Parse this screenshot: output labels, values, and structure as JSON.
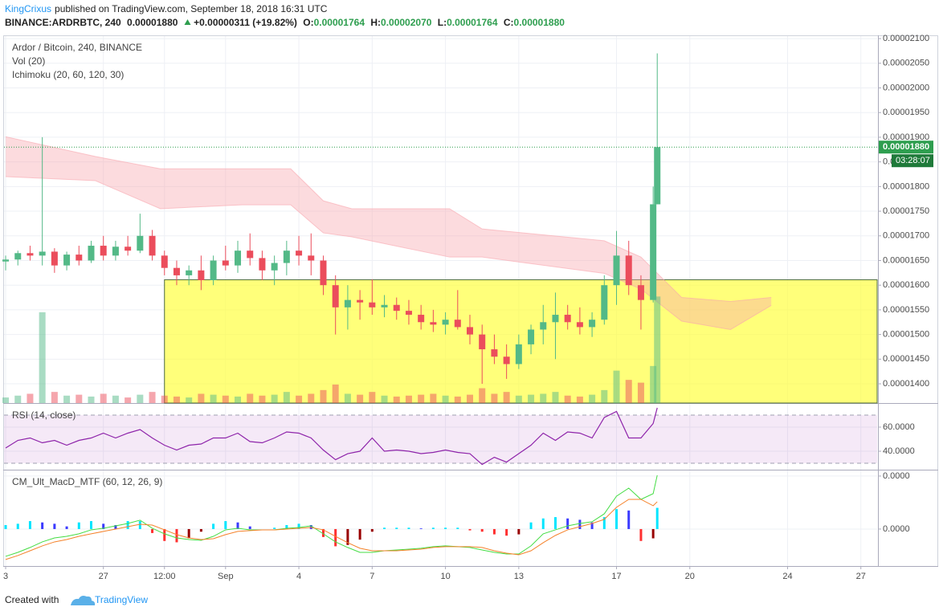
{
  "header": {
    "author": "KingCrixus",
    "published": "published on TradingView.com, September 18, 2018 16:31 UTC",
    "symbol": "BINANCE:ARDRBTC, 240",
    "last": "0.00001880",
    "change": "+0.00000311 (+19.82%)",
    "ohlc": [
      {
        "label": "O:",
        "value": "0.00001764"
      },
      {
        "label": "H:",
        "value": "0.00002070"
      },
      {
        "label": "L:",
        "value": "0.00001764"
      },
      {
        "label": "C:",
        "value": "0.00001880"
      }
    ]
  },
  "footer": {
    "created": "Created with",
    "brand": "TradingView"
  },
  "chart_data": [
    {
      "type": "candlestick",
      "title": "Ardor / Bitcoin, 240, BINANCE",
      "indicators": [
        "Vol (20)",
        "Ichimoku (20, 60, 120, 30)"
      ],
      "up_color": "#53b987",
      "down_color": "#eb4d5c",
      "cloud_color": "#f8a5ad",
      "box_color": "#ffff33",
      "last_color": "#2e9e4f",
      "countdown_color": "#1f7a3a",
      "xlim": [
        -0.4,
        214
      ],
      "ylim": [
        1.361e-05,
        2.105e-05
      ],
      "yticks": [
        {
          "value": 1.4e-05,
          "label": "0.00001400"
        },
        {
          "value": 1.45e-05,
          "label": "0.00001450"
        },
        {
          "value": 1.5e-05,
          "label": "0.00001500"
        },
        {
          "value": 1.55e-05,
          "label": "0.00001550"
        },
        {
          "value": 1.6e-05,
          "label": "0.00001600"
        },
        {
          "value": 1.65e-05,
          "label": "0.00001650"
        },
        {
          "value": 1.7e-05,
          "label": "0.00001700"
        },
        {
          "value": 1.75e-05,
          "label": "0.00001750"
        },
        {
          "value": 1.8e-05,
          "label": "0.00001800"
        },
        {
          "value": 1.85e-05,
          "label": "0.00001850"
        },
        {
          "value": 1.9e-05,
          "label": "0.00001900"
        },
        {
          "value": 1.95e-05,
          "label": "0.00001950"
        },
        {
          "value": 2e-05,
          "label": "0.00002000"
        },
        {
          "value": 2.05e-05,
          "label": "0.00002050"
        },
        {
          "value": 2.1e-05,
          "label": "0.00002100"
        }
      ],
      "x": [
        0,
        3,
        6,
        9,
        12,
        15,
        18,
        21,
        24,
        27,
        30,
        33,
        36,
        39,
        42,
        45,
        48,
        51,
        54,
        57,
        60,
        63,
        66,
        69,
        72,
        75,
        78,
        81,
        84,
        87,
        90,
        93,
        96,
        99,
        102,
        105,
        108,
        111,
        114,
        117,
        120,
        123,
        126,
        129,
        132,
        135,
        138,
        141,
        144,
        147,
        150,
        153,
        156,
        159,
        160
      ],
      "open": [
        1.648e-05,
        1.652e-05,
        1.665e-05,
        1.66e-05,
        1.668e-05,
        1.64e-05,
        1.662e-05,
        1.65e-05,
        1.68e-05,
        1.66e-05,
        1.678e-05,
        1.67e-05,
        1.7e-05,
        1.66e-05,
        1.635e-05,
        1.62e-05,
        1.63e-05,
        1.61e-05,
        1.65e-05,
        1.64e-05,
        1.67e-05,
        1.655e-05,
        1.63e-05,
        1.645e-05,
        1.67e-05,
        1.66e-05,
        1.65e-05,
        1.6e-05,
        1.555e-05,
        1.57e-05,
        1.565e-05,
        1.555e-05,
        1.56e-05,
        1.548e-05,
        1.54e-05,
        1.525e-05,
        1.52e-05,
        1.53e-05,
        1.515e-05,
        1.5e-05,
        1.47e-05,
        1.455e-05,
        1.44e-05,
        1.48e-05,
        1.51e-05,
        1.525e-05,
        1.54e-05,
        1.525e-05,
        1.515e-05,
        1.53e-05,
        1.6e-05,
        1.66e-05,
        1.6e-05,
        1.57e-05,
        1.764e-05
      ],
      "high": [
        1.66e-05,
        1.67e-05,
        1.68e-05,
        1.9e-05,
        1.675e-05,
        1.668e-05,
        1.68e-05,
        1.69e-05,
        1.7e-05,
        1.69e-05,
        1.7e-05,
        1.745e-05,
        1.712e-05,
        1.67e-05,
        1.65e-05,
        1.64e-05,
        1.66e-05,
        1.66e-05,
        1.68e-05,
        1.69e-05,
        1.705e-05,
        1.67e-05,
        1.66e-05,
        1.69e-05,
        1.7e-05,
        1.705e-05,
        1.66e-05,
        1.62e-05,
        1.6e-05,
        1.59e-05,
        1.612e-05,
        1.58e-05,
        1.575e-05,
        1.57e-05,
        1.56e-05,
        1.55e-05,
        1.545e-05,
        1.59e-05,
        1.54e-05,
        1.52e-05,
        1.5e-05,
        1.48e-05,
        1.5e-05,
        1.52e-05,
        1.56e-05,
        1.585e-05,
        1.56e-05,
        1.555e-05,
        1.545e-05,
        1.62e-05,
        1.71e-05,
        1.69e-05,
        1.62e-05,
        1.8e-05,
        2.07e-05
      ],
      "low": [
        1.63e-05,
        1.64e-05,
        1.65e-05,
        1.64e-05,
        1.625e-05,
        1.63e-05,
        1.64e-05,
        1.645e-05,
        1.65e-05,
        1.65e-05,
        1.66e-05,
        1.665e-05,
        1.65e-05,
        1.62e-05,
        1.6e-05,
        1.6e-05,
        1.59e-05,
        1.6e-05,
        1.63e-05,
        1.625e-05,
        1.64e-05,
        1.61e-05,
        1.6e-05,
        1.62e-05,
        1.64e-05,
        1.62e-05,
        1.58e-05,
        1.5e-05,
        1.51e-05,
        1.53e-05,
        1.54e-05,
        1.535e-05,
        1.53e-05,
        1.52e-05,
        1.51e-05,
        1.505e-05,
        1.5e-05,
        1.51e-05,
        1.48e-05,
        1.4e-05,
        1.44e-05,
        1.41e-05,
        1.43e-05,
        1.46e-05,
        1.48e-05,
        1.45e-05,
        1.51e-05,
        1.5e-05,
        1.495e-05,
        1.52e-05,
        1.56e-05,
        1.58e-05,
        1.51e-05,
        1.565e-05,
        1.764e-05
      ],
      "close": [
        1.652e-05,
        1.665e-05,
        1.66e-05,
        1.668e-05,
        1.64e-05,
        1.662e-05,
        1.65e-05,
        1.68e-05,
        1.66e-05,
        1.678e-05,
        1.67e-05,
        1.7e-05,
        1.66e-05,
        1.635e-05,
        1.62e-05,
        1.63e-05,
        1.61e-05,
        1.65e-05,
        1.64e-05,
        1.67e-05,
        1.655e-05,
        1.63e-05,
        1.645e-05,
        1.67e-05,
        1.66e-05,
        1.65e-05,
        1.6e-05,
        1.555e-05,
        1.57e-05,
        1.565e-05,
        1.555e-05,
        1.56e-05,
        1.548e-05,
        1.54e-05,
        1.525e-05,
        1.52e-05,
        1.53e-05,
        1.515e-05,
        1.5e-05,
        1.47e-05,
        1.455e-05,
        1.44e-05,
        1.48e-05,
        1.51e-05,
        1.525e-05,
        1.54e-05,
        1.525e-05,
        1.515e-05,
        1.53e-05,
        1.6e-05,
        1.66e-05,
        1.6e-05,
        1.57e-05,
        1.764e-05,
        1.88e-05
      ],
      "volume": [
        6,
        8,
        10,
        98,
        12,
        8,
        9,
        7,
        10,
        8,
        6,
        9,
        12,
        8,
        7,
        6,
        10,
        9,
        8,
        7,
        10,
        8,
        9,
        12,
        8,
        10,
        14,
        20,
        10,
        9,
        12,
        8,
        7,
        8,
        9,
        10,
        8,
        7,
        9,
        16,
        10,
        12,
        8,
        9,
        10,
        12,
        8,
        7,
        9,
        14,
        35,
        25,
        22,
        40,
        115
      ],
      "vlim": [
        0,
        130
      ],
      "cloud": {
        "x": [
          0,
          22,
          38,
          58,
          70,
          78,
          85,
          109,
          117,
          147,
          156,
          166,
          178,
          188
        ],
        "span_a": [
          1.901e-05,
          1.861e-05,
          1.836e-05,
          1.836e-05,
          1.836e-05,
          1.771e-05,
          1.755e-05,
          1.755e-05,
          1.714e-05,
          1.69e-05,
          1.657e-05,
          1.575e-05,
          1.567e-05,
          1.575e-05
        ],
        "span_b": [
          1.82e-05,
          1.812e-05,
          1.755e-05,
          1.763e-05,
          1.763e-05,
          1.706e-05,
          1.698e-05,
          1.657e-05,
          1.657e-05,
          1.624e-05,
          1.592e-05,
          1.527e-05,
          1.51e-05,
          1.559e-05
        ]
      },
      "box": {
        "xlim": [
          39,
          214
        ],
        "ylim": [
          1.361e-05,
          1.611e-05
        ]
      },
      "last_price": {
        "value": 1.88e-05,
        "label": "0.00001880"
      },
      "countdown": "03:28:07"
    },
    {
      "type": "line",
      "title": "RSI (14, close)",
      "xlim": [
        -0.4,
        214
      ],
      "ylim": [
        24.7,
        79.3
      ],
      "yticks": [
        {
          "value": 40,
          "label": "40.0000"
        },
        {
          "value": 60,
          "label": "60.0000"
        }
      ],
      "band": [
        30,
        70
      ],
      "band_color": "#9c27b0",
      "x": [
        0,
        3,
        6,
        9,
        12,
        15,
        18,
        21,
        24,
        27,
        30,
        33,
        36,
        39,
        42,
        45,
        48,
        51,
        54,
        57,
        60,
        63,
        66,
        69,
        72,
        75,
        78,
        81,
        84,
        87,
        90,
        93,
        96,
        99,
        102,
        105,
        108,
        111,
        114,
        117,
        120,
        123,
        126,
        129,
        132,
        135,
        138,
        141,
        144,
        147,
        150,
        153,
        156,
        159,
        160
      ],
      "series": [
        {
          "color": "#8e24aa",
          "values": [
            42.7,
            49,
            51,
            47,
            49,
            45,
            49,
            51,
            55,
            51,
            55,
            58,
            51,
            45,
            41,
            45,
            46,
            51,
            51,
            55,
            48,
            47,
            51,
            56,
            55,
            51,
            41,
            33,
            38,
            40,
            51,
            40,
            41,
            40,
            38,
            39,
            41,
            39,
            38,
            29,
            35,
            31,
            38,
            45,
            55,
            49,
            56,
            55,
            51,
            68,
            73,
            51,
            51,
            63,
            76
          ]
        }
      ]
    },
    {
      "type": "macd",
      "title": "CM_Ult_MacD_MTF (60, 12, 26, 9)",
      "xlim": [
        -0.4,
        214
      ],
      "ylim": [
        -2.79e-07,
        4.42e-07
      ],
      "yticks": [
        {
          "value": 0,
          "label": "0.0000"
        },
        {
          "value": 4e-07,
          "label": "0.0000"
        }
      ],
      "xticks": [
        {
          "value": 0,
          "label": "3"
        },
        {
          "value": 24,
          "label": "27"
        },
        {
          "value": 39,
          "label": "12:00"
        },
        {
          "value": 54,
          "label": "Sep"
        },
        {
          "value": 72,
          "label": "4"
        },
        {
          "value": 90,
          "label": "7"
        },
        {
          "value": 108,
          "label": "10"
        },
        {
          "value": 126,
          "label": "13"
        },
        {
          "value": 150,
          "label": "17"
        },
        {
          "value": 168,
          "label": "20"
        },
        {
          "value": 192,
          "label": "24"
        },
        {
          "value": 210,
          "label": "27"
        }
      ],
      "x": [
        0,
        3,
        6,
        9,
        12,
        15,
        18,
        21,
        24,
        27,
        30,
        33,
        36,
        39,
        42,
        45,
        48,
        51,
        54,
        57,
        60,
        63,
        66,
        69,
        72,
        75,
        78,
        81,
        84,
        87,
        90,
        93,
        96,
        99,
        102,
        105,
        108,
        111,
        114,
        117,
        120,
        123,
        126,
        129,
        132,
        135,
        138,
        141,
        144,
        147,
        150,
        153,
        156,
        159,
        160
      ],
      "series": [
        {
          "color": "#44dd44",
          "values": [
            -2.06e-07,
            -1.76e-07,
            -1.39e-07,
            -9.7e-08,
            -6.7e-08,
            -5.5e-08,
            -3.6e-08,
            -6e-09,
            6e-09,
            2.4e-08,
            4.2e-08,
            6.7e-08,
            6e-09,
            -3.6e-08,
            -6.7e-08,
            -7.9e-08,
            -8.5e-08,
            -5.5e-08,
            -6e-09,
            6e-09,
            -6e-09,
            -6e-09,
            -6e-09,
            6e-09,
            1.2e-08,
            2.4e-08,
            -3.6e-08,
            -9.7e-08,
            -1.39e-07,
            -1.76e-07,
            -1.76e-07,
            -1.64e-07,
            -1.58e-07,
            -1.52e-07,
            -1.45e-07,
            -1.33e-07,
            -1.27e-07,
            -1.33e-07,
            -1.39e-07,
            -1.58e-07,
            -1.76e-07,
            -1.88e-07,
            -1.88e-07,
            -1.27e-07,
            -3.6e-08,
            -6e-09,
            2.4e-08,
            4.2e-08,
            5.5e-08,
            1.15e-07,
            2.48e-07,
            3.09e-07,
            2.24e-07,
            2.67e-07,
            4.06e-07
          ]
        },
        {
          "color": "#f5822a",
          "values": [
            -2.3e-07,
            -2e-07,
            -1.64e-07,
            -1.27e-07,
            -9.7e-08,
            -7.9e-08,
            -5.5e-08,
            -3.6e-08,
            -1.8e-08,
            0,
            1.8e-08,
            3.6e-08,
            3e-08,
            -6e-09,
            -4.2e-08,
            -6.7e-08,
            -7.9e-08,
            -7.3e-08,
            -4.2e-08,
            -1.8e-08,
            -1.2e-08,
            -6e-09,
            -6e-09,
            0,
            6e-09,
            1.2e-08,
            -6e-09,
            -5.5e-08,
            -1.03e-07,
            -1.45e-07,
            -1.64e-07,
            -1.64e-07,
            -1.64e-07,
            -1.58e-07,
            -1.52e-07,
            -1.39e-07,
            -1.33e-07,
            -1.33e-07,
            -1.33e-07,
            -1.39e-07,
            -1.64e-07,
            -1.82e-07,
            -1.94e-07,
            -1.64e-07,
            -1.03e-07,
            -4.8e-08,
            -6e-09,
            1.8e-08,
            4.2e-08,
            7.3e-08,
            1.64e-07,
            2.24e-07,
            2.24e-07,
            1.76e-07,
            2.06e-07
          ]
        }
      ],
      "histogram": {
        "colors": [
          "#00e5ff",
          "#3a3aff",
          "#ff3030",
          "#990000"
        ],
        "values": [
          3e-08,
          4e-08,
          6e-08,
          5e-08,
          4e-08,
          2e-08,
          5e-08,
          6e-08,
          4e-08,
          3e-08,
          6e-08,
          6e-08,
          -3e-08,
          -9e-08,
          -1e-07,
          -7e-08,
          -2e-08,
          4e-08,
          6e-08,
          5e-08,
          2e-08,
          0,
          1e-08,
          3e-08,
          4e-08,
          3e-08,
          -6e-08,
          -1.3e-07,
          -1.2e-07,
          -8e-08,
          -2e-08,
          1e-08,
          1e-08,
          1e-08,
          5e-09,
          1e-08,
          1e-08,
          1e-08,
          -1e-08,
          -2e-08,
          -4e-08,
          -5e-08,
          -4e-08,
          5e-08,
          8e-08,
          9e-08,
          8e-08,
          7e-08,
          5e-08,
          9e-08,
          1.5e-07,
          1.4e-07,
          -9e-08,
          -7e-08,
          1.6e-07
        ]
      }
    }
  ]
}
